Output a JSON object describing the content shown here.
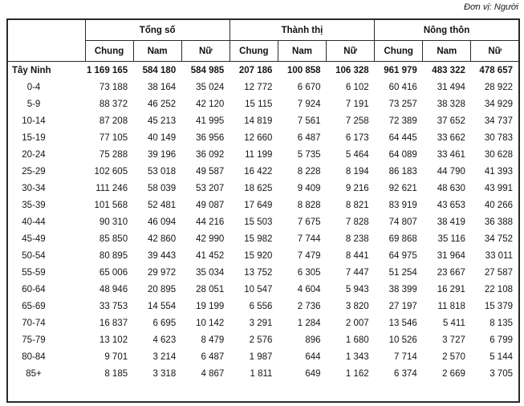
{
  "unit_label": "Đơn vị: Người",
  "chart_data": {
    "type": "table",
    "column_groups": [
      "Tổng số",
      "Thành thị",
      "Nông thôn"
    ],
    "sub_columns": [
      "Chung",
      "Nam",
      "Nữ"
    ],
    "rows": [
      {
        "label": "Tây Ninh",
        "bold": true,
        "values": [
          "1 169 165",
          "584 180",
          "584 985",
          "207 186",
          "100 858",
          "106 328",
          "961 979",
          "483 322",
          "478 657"
        ]
      },
      {
        "label": "0-4",
        "values": [
          "73 188",
          "38 164",
          "35 024",
          "12 772",
          "6 670",
          "6 102",
          "60 416",
          "31 494",
          "28 922"
        ]
      },
      {
        "label": "5-9",
        "values": [
          "88 372",
          "46 252",
          "42 120",
          "15 115",
          "7 924",
          "7 191",
          "73 257",
          "38 328",
          "34 929"
        ]
      },
      {
        "label": "10-14",
        "values": [
          "87 208",
          "45 213",
          "41 995",
          "14 819",
          "7 561",
          "7 258",
          "72 389",
          "37 652",
          "34 737"
        ]
      },
      {
        "label": "15-19",
        "values": [
          "77 105",
          "40 149",
          "36 956",
          "12 660",
          "6 487",
          "6 173",
          "64 445",
          "33 662",
          "30 783"
        ]
      },
      {
        "label": "20-24",
        "values": [
          "75 288",
          "39 196",
          "36 092",
          "11 199",
          "5 735",
          "5 464",
          "64 089",
          "33 461",
          "30 628"
        ]
      },
      {
        "label": "25-29",
        "values": [
          "102 605",
          "53 018",
          "49 587",
          "16 422",
          "8 228",
          "8 194",
          "86 183",
          "44 790",
          "41 393"
        ]
      },
      {
        "label": "30-34",
        "values": [
          "111 246",
          "58 039",
          "53 207",
          "18 625",
          "9 409",
          "9 216",
          "92 621",
          "48 630",
          "43 991"
        ]
      },
      {
        "label": "35-39",
        "values": [
          "101 568",
          "52 481",
          "49 087",
          "17 649",
          "8 828",
          "8 821",
          "83 919",
          "43 653",
          "40 266"
        ]
      },
      {
        "label": "40-44",
        "values": [
          "90 310",
          "46 094",
          "44 216",
          "15 503",
          "7 675",
          "7 828",
          "74 807",
          "38 419",
          "36 388"
        ]
      },
      {
        "label": "45-49",
        "values": [
          "85 850",
          "42 860",
          "42 990",
          "15 982",
          "7 744",
          "8 238",
          "69 868",
          "35 116",
          "34 752"
        ]
      },
      {
        "label": "50-54",
        "values": [
          "80 895",
          "39 443",
          "41 452",
          "15 920",
          "7 479",
          "8 441",
          "64 975",
          "31 964",
          "33 011"
        ]
      },
      {
        "label": "55-59",
        "values": [
          "65 006",
          "29 972",
          "35 034",
          "13 752",
          "6 305",
          "7 447",
          "51 254",
          "23 667",
          "27 587"
        ]
      },
      {
        "label": "60-64",
        "values": [
          "48 946",
          "20 895",
          "28 051",
          "10 547",
          "4 604",
          "5 943",
          "38 399",
          "16 291",
          "22 108"
        ]
      },
      {
        "label": "65-69",
        "values": [
          "33 753",
          "14 554",
          "19 199",
          "6 556",
          "2 736",
          "3 820",
          "27 197",
          "11 818",
          "15 379"
        ]
      },
      {
        "label": "70-74",
        "values": [
          "16 837",
          "6 695",
          "10 142",
          "3 291",
          "1 284",
          "2 007",
          "13 546",
          "5 411",
          "8 135"
        ]
      },
      {
        "label": "75-79",
        "values": [
          "13 102",
          "4 623",
          "8 479",
          "2 576",
          "896",
          "1 680",
          "10 526",
          "3 727",
          "6 799"
        ]
      },
      {
        "label": "80-84",
        "values": [
          "9 701",
          "3 214",
          "6 487",
          "1 987",
          "644",
          "1 343",
          "7 714",
          "2 570",
          "5 144"
        ]
      },
      {
        "label": "85+",
        "values": [
          "8 185",
          "3 318",
          "4 867",
          "1 811",
          "649",
          "1 162",
          "6 374",
          "2 669",
          "3 705"
        ]
      }
    ]
  }
}
